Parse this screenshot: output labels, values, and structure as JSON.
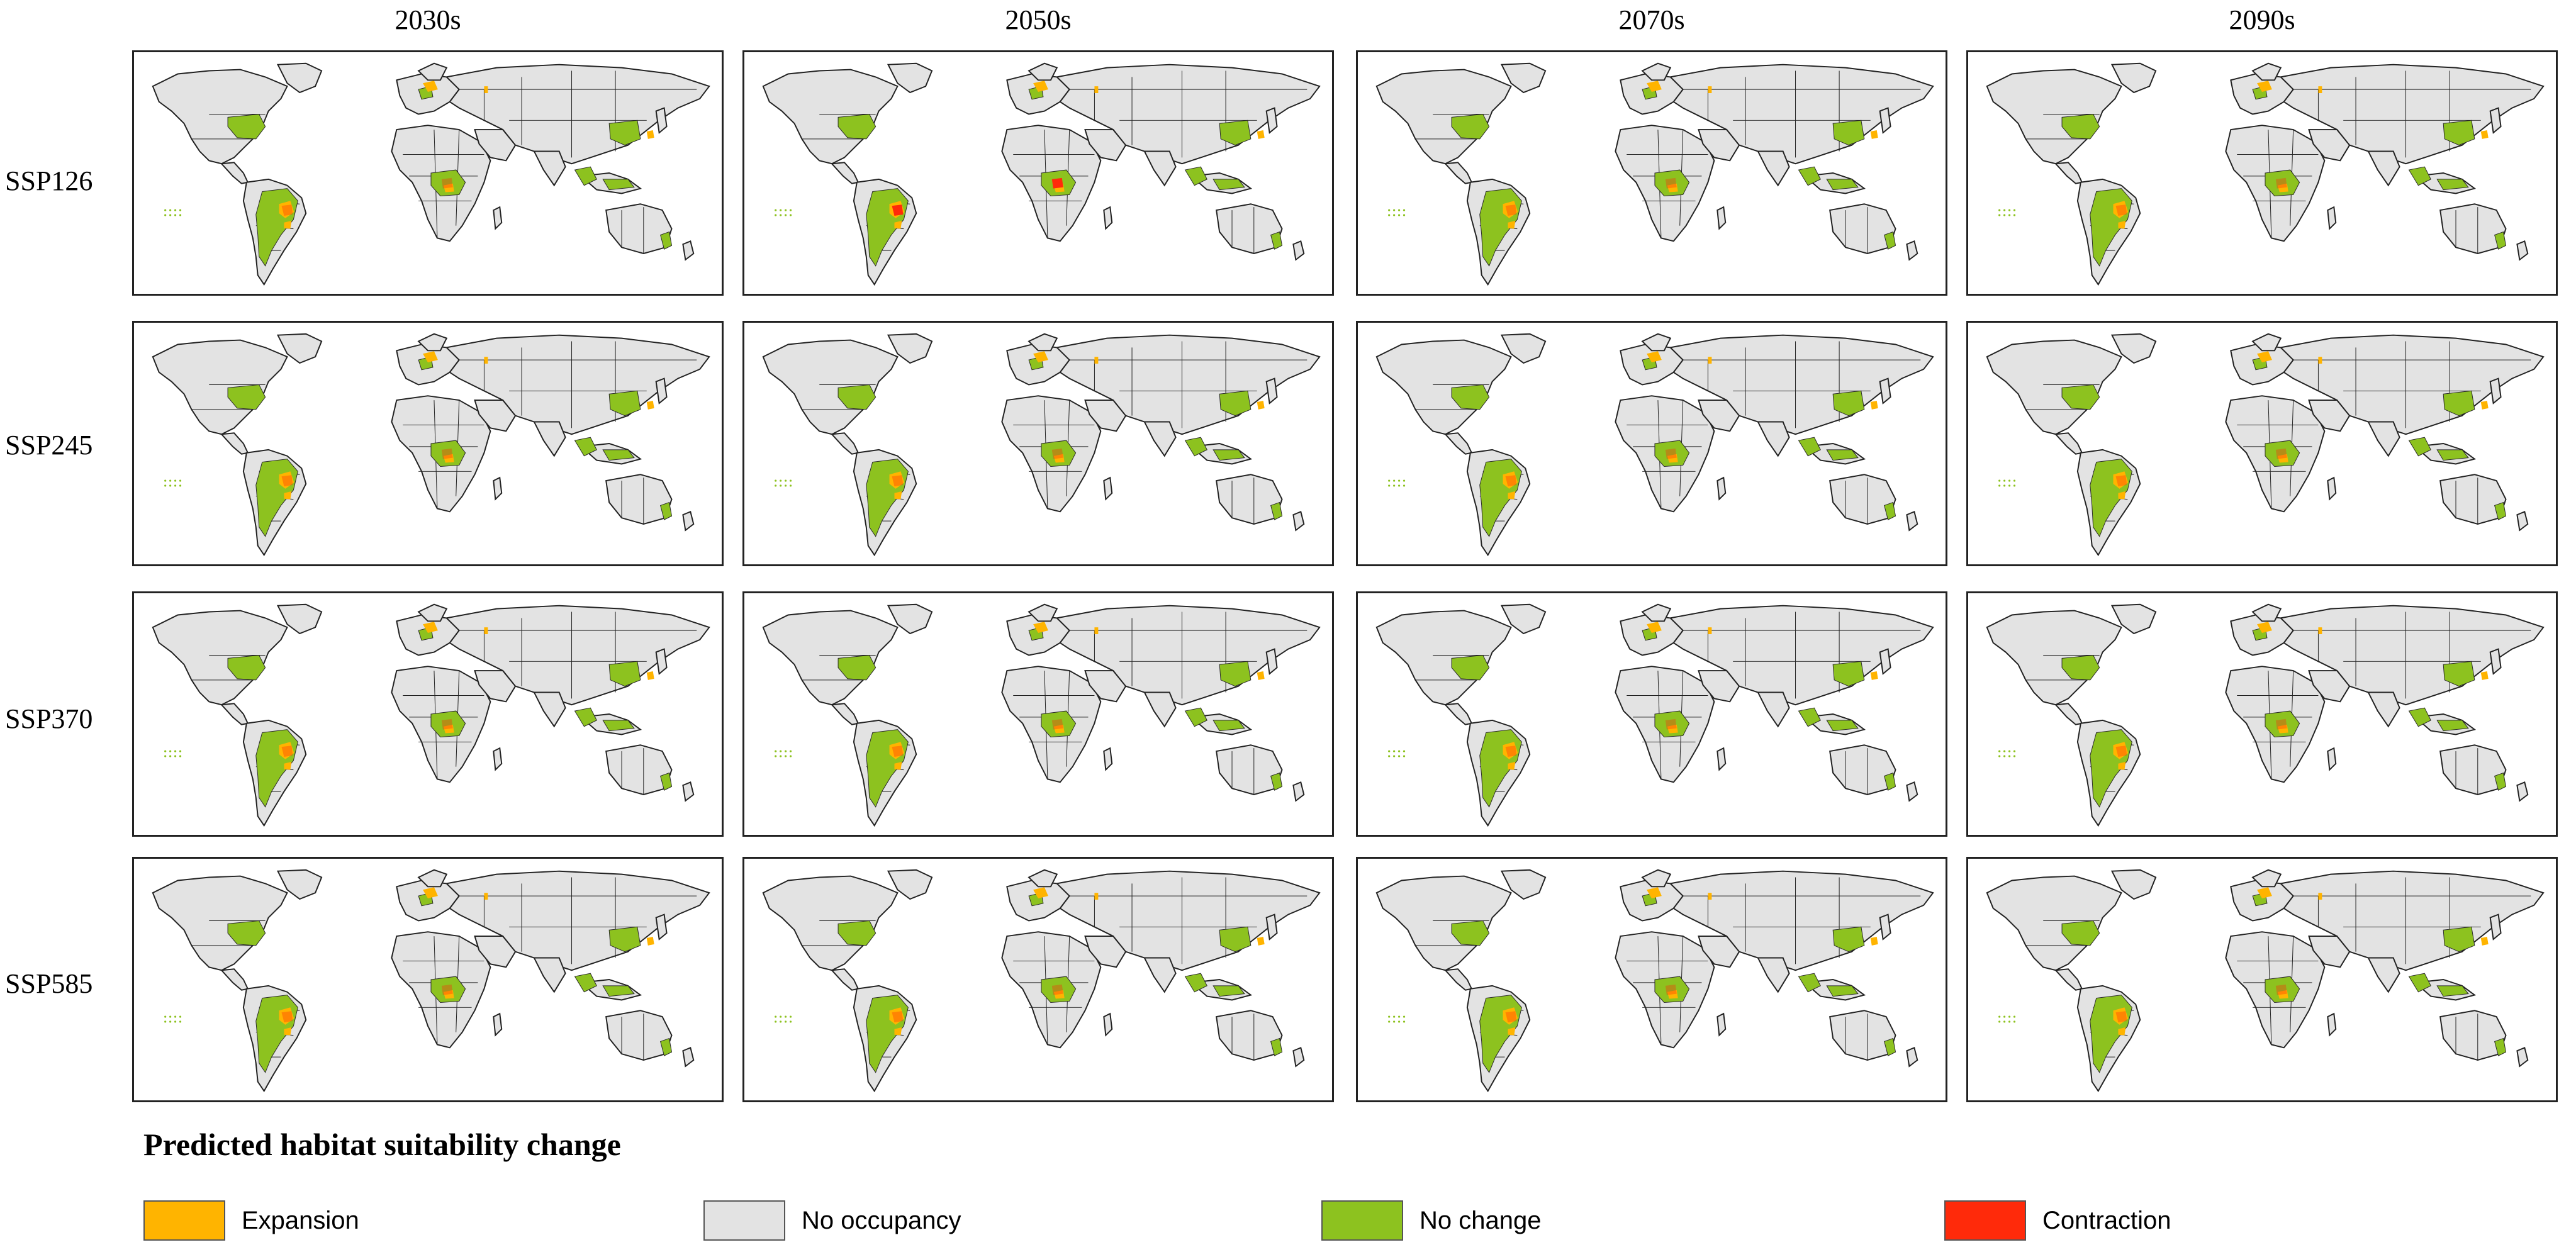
{
  "columns": [
    "2030s",
    "2050s",
    "2070s",
    "2090s"
  ],
  "rows": [
    "SSP126",
    "SSP245",
    "SSP370",
    "SSP585"
  ],
  "legend": {
    "title": "Predicted habitat suitability change",
    "items": [
      {
        "label": "Expansion",
        "color": "#FFB400"
      },
      {
        "label": "No occupancy",
        "color": "#E3E3E3"
      },
      {
        "label": "No change",
        "color": "#8DC21F"
      },
      {
        "label": "Contraction",
        "color": "#FF2A0A"
      }
    ]
  },
  "colors": {
    "land": "#E3E3E3",
    "border": "#222222",
    "expansion": "#FFB400",
    "no_change": "#8DC21F",
    "contraction": "#FF2A0A"
  }
}
